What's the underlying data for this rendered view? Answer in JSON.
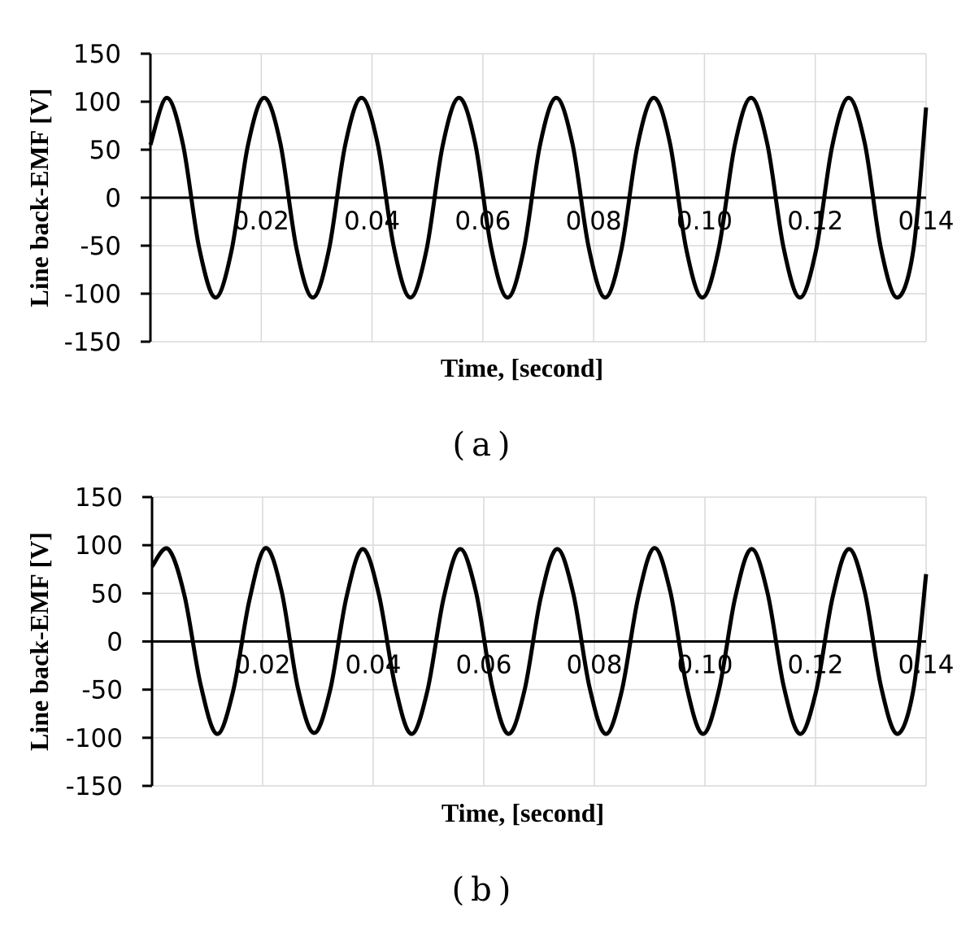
{
  "chart_data": [
    {
      "type": "line",
      "caption": "(a)",
      "xlabel": "Time, [second]",
      "ylabel": "Line back-EMF [V]",
      "xlim": [
        0,
        0.14
      ],
      "ylim": [
        -150,
        150
      ],
      "x_ticks": [
        "0.02",
        "0.04",
        "0.06",
        "0.08",
        "0.10",
        "0.12",
        "0.14"
      ],
      "y_ticks": [
        "150",
        "100",
        "50",
        "0",
        "-50",
        "-100",
        "-150"
      ],
      "grid": true,
      "series": [
        {
          "color": "#000000",
          "x": [
            0.0,
            0.00293,
            0.00586,
            0.00879,
            0.01172,
            0.01465,
            0.01758,
            0.02051,
            0.02344,
            0.02637,
            0.0293,
            0.03223,
            0.03516,
            0.03809,
            0.04102,
            0.04395,
            0.04688,
            0.04981,
            0.05274,
            0.05567,
            0.0586,
            0.06153,
            0.06446,
            0.06739,
            0.07032,
            0.07325,
            0.07618,
            0.07911,
            0.08204,
            0.08497,
            0.0879,
            0.09083,
            0.09376,
            0.09669,
            0.09962,
            0.10255,
            0.10548,
            0.10841,
            0.11134,
            0.11427,
            0.1172,
            0.12013,
            0.12306,
            0.12599,
            0.12892,
            0.13185,
            0.13478,
            0.13771,
            0.14
          ],
          "y": [
            55,
            104,
            56,
            -52,
            -104,
            -55,
            54,
            104,
            57,
            -53,
            -104,
            -54,
            55,
            104,
            56,
            -52,
            -104,
            -55,
            54,
            104,
            57,
            -53,
            -104,
            -54,
            55,
            104,
            56,
            -52,
            -104,
            -55,
            54,
            104,
            57,
            -53,
            -104,
            -54,
            55,
            104,
            56,
            -52,
            -104,
            -55,
            54,
            104,
            57,
            -53,
            -104,
            -54,
            94
          ]
        }
      ]
    },
    {
      "type": "line",
      "caption": "(b)",
      "xlabel": "Time, [second]",
      "ylabel": "Line back-EMF [V]",
      "xlim": [
        0,
        0.14
      ],
      "ylim": [
        -150,
        150
      ],
      "x_ticks": [
        "0.02",
        "0.04",
        "0.06",
        "0.08",
        "0.10",
        "0.12",
        "0.14"
      ],
      "y_ticks": [
        "150",
        "100",
        "50",
        "0",
        "-50",
        "-100",
        "-150"
      ],
      "grid": true,
      "series": [
        {
          "color": "#000000",
          "x": [
            0.0,
            0.00293,
            0.00586,
            0.00879,
            0.01172,
            0.01465,
            0.01758,
            0.02051,
            0.02344,
            0.02637,
            0.0293,
            0.03223,
            0.03516,
            0.03809,
            0.04102,
            0.04395,
            0.04688,
            0.04981,
            0.05274,
            0.05567,
            0.0586,
            0.06153,
            0.06446,
            0.06739,
            0.07032,
            0.07325,
            0.07618,
            0.07911,
            0.08204,
            0.08497,
            0.0879,
            0.09083,
            0.09376,
            0.09669,
            0.09962,
            0.10255,
            0.10548,
            0.10841,
            0.11134,
            0.11427,
            0.1172,
            0.12013,
            0.12306,
            0.12599,
            0.12892,
            0.13185,
            0.13478,
            0.13771,
            0.14
          ],
          "y": [
            78,
            96,
            48,
            -45,
            -96,
            -52,
            42,
            97,
            52,
            -48,
            -95,
            -50,
            46,
            96,
            49,
            -46,
            -96,
            -51,
            45,
            96,
            51,
            -47,
            -96,
            -50,
            46,
            96,
            50,
            -47,
            -96,
            -51,
            45,
            97,
            51,
            -47,
            -96,
            -50,
            46,
            96,
            50,
            -47,
            -96,
            -51,
            45,
            96,
            51,
            -47,
            -96,
            -50,
            70
          ]
        }
      ]
    }
  ]
}
